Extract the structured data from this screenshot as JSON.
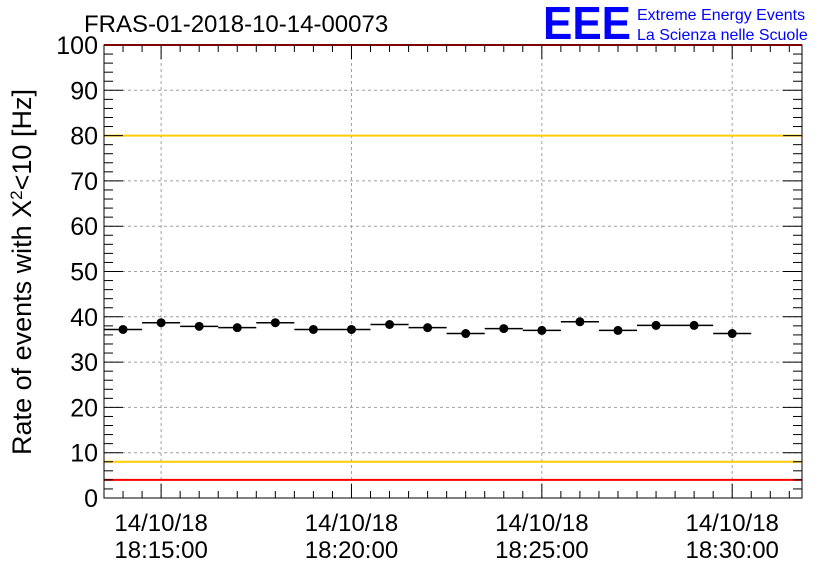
{
  "chart_data": {
    "type": "scatter",
    "title": "FRAS-01-2018-10-14-00073",
    "ylabel_main": "Rate of events with X",
    "ylabel_sup": "2",
    "ylabel_tail": "<10 [Hz]",
    "ylim": [
      0,
      100
    ],
    "yticks": [
      0,
      10,
      20,
      30,
      40,
      50,
      60,
      70,
      80,
      90,
      100
    ],
    "xlim_seconds": [
      -90,
      1010
    ],
    "xticks": [
      {
        "t": 0,
        "date": "14/10/18",
        "time": "18:15:00"
      },
      {
        "t": 300,
        "date": "14/10/18",
        "time": "18:20:00"
      },
      {
        "t": 600,
        "date": "14/10/18",
        "time": "18:25:00"
      },
      {
        "t": 900,
        "date": "14/10/18",
        "time": "18:30:00"
      }
    ],
    "grid": true,
    "bin_width_seconds": 60,
    "points": [
      {
        "t": -60,
        "y": 37.2
      },
      {
        "t": 0,
        "y": 38.7
      },
      {
        "t": 60,
        "y": 37.9
      },
      {
        "t": 120,
        "y": 37.6
      },
      {
        "t": 180,
        "y": 38.7
      },
      {
        "t": 240,
        "y": 37.2
      },
      {
        "t": 300,
        "y": 37.2
      },
      {
        "t": 360,
        "y": 38.3
      },
      {
        "t": 420,
        "y": 37.6
      },
      {
        "t": 480,
        "y": 36.3
      },
      {
        "t": 540,
        "y": 37.4
      },
      {
        "t": 600,
        "y": 37.0
      },
      {
        "t": 660,
        "y": 38.9
      },
      {
        "t": 720,
        "y": 37.0
      },
      {
        "t": 780,
        "y": 38.1
      },
      {
        "t": 840,
        "y": 38.1
      },
      {
        "t": 900,
        "y": 36.3
      }
    ],
    "reference_lines": [
      {
        "y": 100,
        "color": "#ff0000"
      },
      {
        "y": 80,
        "color": "#ffcc00"
      },
      {
        "y": 8,
        "color": "#ffcc00"
      },
      {
        "y": 4,
        "color": "#ff0000"
      }
    ]
  },
  "logo": {
    "text": "EEE",
    "line1": "Extreme Energy Events",
    "line2": "La Scienza nelle Scuole",
    "color": "#0000ff"
  }
}
